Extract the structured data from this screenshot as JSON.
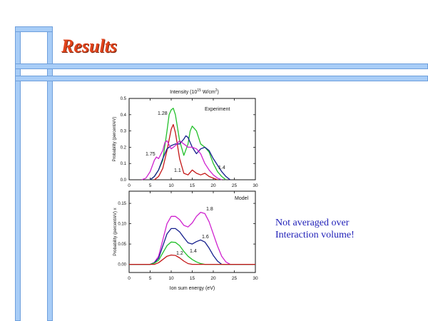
{
  "slide": {
    "title": "Results",
    "note_lines": [
      "Not averaged over",
      "Interaction volume!"
    ]
  },
  "colors": {
    "frame": "#a8cdf7",
    "frame_edge": "#6e9fdc",
    "title": "#e2431b",
    "note": "#1f1fb8"
  },
  "chart_data": [
    {
      "type": "line",
      "title": "Intensity (10",
      "title_exponent": "15",
      "title_suffix": " W/cm",
      "title_suffix_exponent": "2",
      "title_close": ")",
      "panel_label": "Experiment",
      "xlabel": "",
      "ylabel": "Probability (percent/eV)",
      "xlim": [
        0,
        30
      ],
      "ylim": [
        0,
        0.5
      ],
      "xticks": [
        "0",
        "5",
        "10",
        "15",
        "20",
        "25",
        "30"
      ],
      "yticks": [
        "0.0",
        "0.1",
        "0.2",
        "0.3",
        "0.4",
        "0.5"
      ],
      "series": [
        {
          "label": "1.28",
          "color": "#22c02a",
          "points": [
            [
              5,
              0
            ],
            [
              6,
              0.02
            ],
            [
              7,
              0.06
            ],
            [
              8,
              0.12
            ],
            [
              9,
              0.3
            ],
            [
              9.5,
              0.4
            ],
            [
              10,
              0.43
            ],
            [
              10.5,
              0.44
            ],
            [
              11,
              0.4
            ],
            [
              12,
              0.24
            ],
            [
              13,
              0.15
            ],
            [
              14,
              0.22
            ],
            [
              14.5,
              0.3
            ],
            [
              15,
              0.33
            ],
            [
              16,
              0.3
            ],
            [
              17,
              0.22
            ],
            [
              18,
              0.2
            ],
            [
              19,
              0.17
            ],
            [
              20,
              0.1
            ],
            [
              21,
              0.05
            ],
            [
              22,
              0.02
            ],
            [
              23,
              0
            ]
          ]
        },
        {
          "label": "1.1",
          "color": "#c41616",
          "points": [
            [
              6,
              0
            ],
            [
              7,
              0.02
            ],
            [
              8,
              0.07
            ],
            [
              9,
              0.18
            ],
            [
              10,
              0.31
            ],
            [
              10.5,
              0.34
            ],
            [
              11,
              0.29
            ],
            [
              12,
              0.13
            ],
            [
              13,
              0.04
            ],
            [
              14,
              0.03
            ],
            [
              15,
              0.06
            ],
            [
              16,
              0.04
            ],
            [
              17,
              0.03
            ],
            [
              18,
              0.04
            ],
            [
              19,
              0.02
            ],
            [
              20,
              0.01
            ],
            [
              21,
              0
            ]
          ]
        },
        {
          "label": "1.4",
          "color": "#141e8c",
          "points": [
            [
              5,
              0
            ],
            [
              6,
              0.02
            ],
            [
              7,
              0.06
            ],
            [
              8,
              0.13
            ],
            [
              9,
              0.19
            ],
            [
              10,
              0.21
            ],
            [
              11,
              0.22
            ],
            [
              12,
              0.22
            ],
            [
              13,
              0.25
            ],
            [
              13.5,
              0.27
            ],
            [
              14,
              0.26
            ],
            [
              15,
              0.2
            ],
            [
              16,
              0.16
            ],
            [
              17,
              0.19
            ],
            [
              18,
              0.2
            ],
            [
              19,
              0.18
            ],
            [
              20,
              0.13
            ],
            [
              21,
              0.09
            ],
            [
              22,
              0.05
            ],
            [
              23,
              0.02
            ],
            [
              24,
              0
            ]
          ]
        },
        {
          "label": "1.75",
          "color": "#cf22cf",
          "points": [
            [
              3,
              0
            ],
            [
              4,
              0.01
            ],
            [
              5,
              0.05
            ],
            [
              6,
              0.12
            ],
            [
              6.5,
              0.14
            ],
            [
              7,
              0.13
            ],
            [
              8,
              0.18
            ],
            [
              8.5,
              0.23
            ],
            [
              9,
              0.24
            ],
            [
              10,
              0.19
            ],
            [
              11,
              0.21
            ],
            [
              12,
              0.24
            ],
            [
              13,
              0.22
            ],
            [
              14,
              0.2
            ],
            [
              15,
              0.2
            ],
            [
              16,
              0.19
            ],
            [
              17,
              0.16
            ],
            [
              18,
              0.1
            ],
            [
              19,
              0.06
            ],
            [
              20,
              0.03
            ],
            [
              21,
              0.01
            ],
            [
              22,
              0
            ]
          ]
        }
      ]
    },
    {
      "type": "line",
      "title": "",
      "panel_label": "Model",
      "xlabel": "Ion sum energy (eV)",
      "ylabel": "Probability (percent/eV) x",
      "xlim": [
        0,
        30
      ],
      "ylim": [
        -0.02,
        0.18
      ],
      "xticks": [
        "0",
        "5",
        "10",
        "15",
        "20",
        "25",
        "30"
      ],
      "yticks": [
        "0.00",
        "0.05",
        "0.10",
        "0.15"
      ],
      "series": [
        {
          "label": "1.8",
          "color": "#cf22cf",
          "points": [
            [
              0,
              0
            ],
            [
              5,
              0
            ],
            [
              6,
              0.005
            ],
            [
              7,
              0.02
            ],
            [
              8,
              0.06
            ],
            [
              9,
              0.1
            ],
            [
              10,
              0.118
            ],
            [
              11,
              0.118
            ],
            [
              12,
              0.11
            ],
            [
              13,
              0.096
            ],
            [
              14,
              0.092
            ],
            [
              15,
              0.102
            ],
            [
              16,
              0.118
            ],
            [
              17,
              0.128
            ],
            [
              18,
              0.125
            ],
            [
              19,
              0.105
            ],
            [
              20,
              0.075
            ],
            [
              21,
              0.045
            ],
            [
              22,
              0.02
            ],
            [
              23,
              0.006
            ],
            [
              24,
              0
            ],
            [
              30,
              0
            ]
          ]
        },
        {
          "label": "1.6",
          "color": "#141e8c",
          "points": [
            [
              0,
              0
            ],
            [
              5,
              0
            ],
            [
              6,
              0.004
            ],
            [
              7,
              0.015
            ],
            [
              8,
              0.045
            ],
            [
              9,
              0.075
            ],
            [
              10,
              0.088
            ],
            [
              11,
              0.088
            ],
            [
              12,
              0.08
            ],
            [
              13,
              0.066
            ],
            [
              14,
              0.053
            ],
            [
              15,
              0.05
            ],
            [
              16,
              0.056
            ],
            [
              17,
              0.06
            ],
            [
              18,
              0.055
            ],
            [
              19,
              0.04
            ],
            [
              20,
              0.022
            ],
            [
              21,
              0.008
            ],
            [
              22,
              0
            ],
            [
              30,
              0
            ]
          ]
        },
        {
          "label": "1.4",
          "color": "#22c02a",
          "points": [
            [
              0,
              0
            ],
            [
              5,
              0
            ],
            [
              6,
              0.003
            ],
            [
              7,
              0.01
            ],
            [
              8,
              0.028
            ],
            [
              9,
              0.046
            ],
            [
              10,
              0.055
            ],
            [
              11,
              0.054
            ],
            [
              12,
              0.046
            ],
            [
              13,
              0.032
            ],
            [
              14,
              0.02
            ],
            [
              15,
              0.012
            ],
            [
              16,
              0.006
            ],
            [
              17,
              0.002
            ],
            [
              18,
              0
            ],
            [
              30,
              0
            ]
          ]
        },
        {
          "label": "1.2",
          "color": "#c41616",
          "points": [
            [
              0,
              0
            ],
            [
              6,
              0
            ],
            [
              7,
              0.004
            ],
            [
              8,
              0.012
            ],
            [
              9,
              0.02
            ],
            [
              10,
              0.023
            ],
            [
              11,
              0.022
            ],
            [
              12,
              0.016
            ],
            [
              13,
              0.008
            ],
            [
              14,
              0.002
            ],
            [
              15,
              0
            ],
            [
              30,
              0
            ]
          ]
        }
      ]
    }
  ]
}
